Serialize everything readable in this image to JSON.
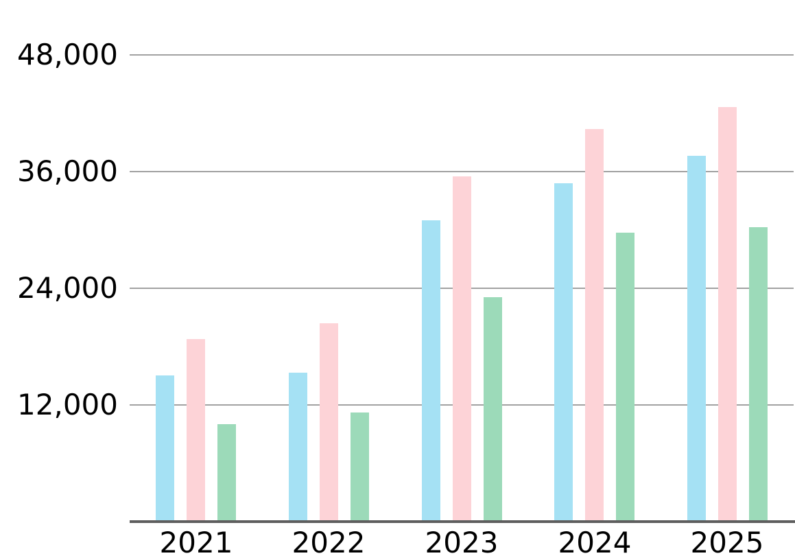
{
  "chart_data": {
    "type": "bar",
    "title": "",
    "xlabel": "",
    "ylabel": "",
    "categories": [
      "2021",
      "2022",
      "2023",
      "2024",
      "2025"
    ],
    "series": [
      {
        "name": "blue",
        "color": "#A5E1F4",
        "values": [
          15000,
          15300,
          31000,
          34800,
          37600
        ]
      },
      {
        "name": "pink",
        "color": "#FDD3D7",
        "values": [
          18800,
          20400,
          35500,
          40400,
          42600
        ]
      },
      {
        "name": "green",
        "color": "#9CDAB9",
        "values": [
          10000,
          11200,
          23100,
          29700,
          30300
        ]
      }
    ],
    "ylim": [
      0,
      48000
    ],
    "yticks": [
      12000,
      24000,
      36000,
      48000
    ],
    "ytick_labels": [
      "12,000",
      "24,000",
      "36,000",
      "48,000"
    ],
    "grid": true,
    "legend": false
  },
  "style": {
    "grid_color": "#A1A1A1",
    "axis_color": "#5E5E5E",
    "text_color": "#000000",
    "background": "#FFFFFF"
  }
}
